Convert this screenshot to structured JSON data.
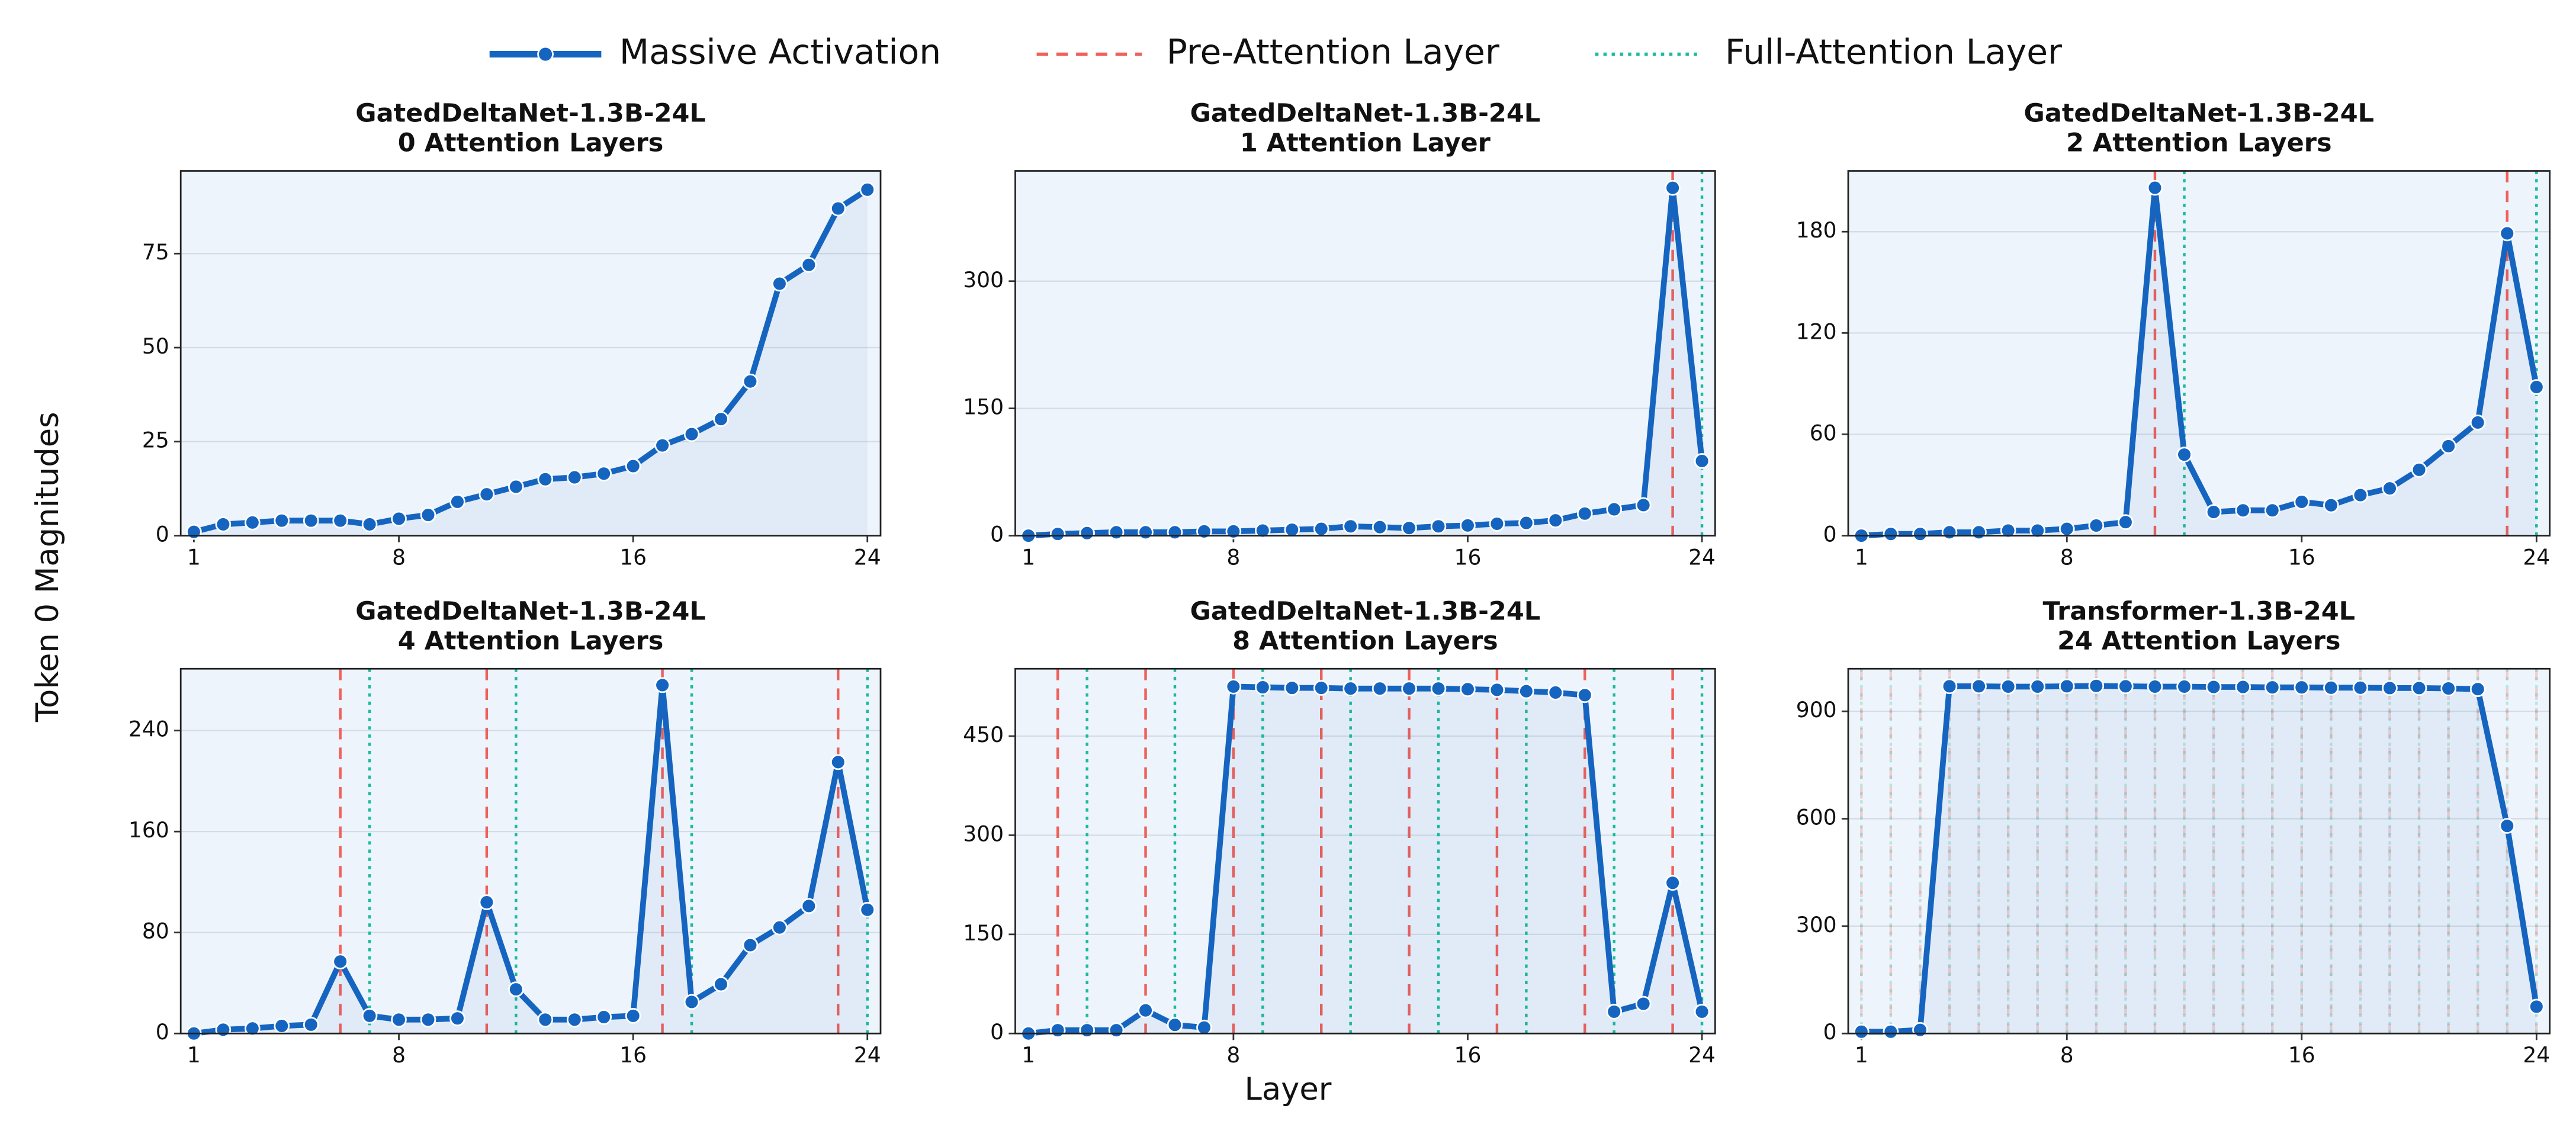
{
  "legend": [
    {
      "name": "Massive Activation",
      "color": "#1565c0",
      "style": "solid"
    },
    {
      "name": "Pre-Attention Layer",
      "color": "#f0605a",
      "style": "dashed"
    },
    {
      "name": "Full-Attention Layer",
      "color": "#1abc9c",
      "style": "dotted"
    }
  ],
  "xlabel": "Layer",
  "ylabel": "Token 0 Magnitudes",
  "chart_data": [
    {
      "type": "line",
      "title": "GatedDeltaNet-1.3B-24L",
      "subtitle": "0 Attention Layers",
      "x": [
        1,
        2,
        3,
        4,
        5,
        6,
        7,
        8,
        9,
        10,
        11,
        12,
        13,
        14,
        15,
        16,
        17,
        18,
        19,
        20,
        21,
        22,
        23,
        24
      ],
      "values": [
        1,
        3,
        3.5,
        4,
        4,
        4,
        3,
        4.5,
        5.5,
        9,
        11,
        13,
        15,
        15.5,
        16.5,
        18.5,
        24,
        27,
        31,
        41,
        67,
        72,
        87,
        92
      ],
      "xlim": [
        0.55,
        24.45
      ],
      "ylim": [
        0,
        97
      ],
      "xticks": [
        1,
        8,
        16,
        24
      ],
      "yticks": [
        0,
        25,
        50,
        75
      ],
      "pre_attention_layers": [],
      "full_attention_layers": []
    },
    {
      "type": "line",
      "title": "GatedDeltaNet-1.3B-24L",
      "subtitle": "1 Attention Layer",
      "x": [
        1,
        2,
        3,
        4,
        5,
        6,
        7,
        8,
        9,
        10,
        11,
        12,
        13,
        14,
        15,
        16,
        17,
        18,
        19,
        20,
        21,
        22,
        23,
        24
      ],
      "values": [
        0,
        2,
        3,
        4,
        4,
        4,
        5,
        5,
        6,
        7,
        8,
        11,
        10,
        9,
        11,
        12,
        14,
        15,
        18,
        26,
        31,
        36,
        410,
        88
      ],
      "xlim": [
        0.55,
        24.45
      ],
      "ylim": [
        0,
        430
      ],
      "xticks": [
        1,
        8,
        16,
        24
      ],
      "yticks": [
        0,
        150,
        300
      ],
      "pre_attention_layers": [
        23
      ],
      "full_attention_layers": [
        24
      ]
    },
    {
      "type": "line",
      "title": "GatedDeltaNet-1.3B-24L",
      "subtitle": "2 Attention Layers",
      "x": [
        1,
        2,
        3,
        4,
        5,
        6,
        7,
        8,
        9,
        10,
        11,
        12,
        13,
        14,
        15,
        16,
        17,
        18,
        19,
        20,
        21,
        22,
        23,
        24
      ],
      "values": [
        0,
        1,
        1,
        2,
        2,
        3,
        3,
        4,
        6,
        8,
        206,
        48,
        14,
        15,
        15,
        20,
        18,
        24,
        28,
        39,
        53,
        67,
        179,
        88
      ],
      "xlim": [
        0.55,
        24.45
      ],
      "ylim": [
        0,
        216
      ],
      "xticks": [
        1,
        8,
        16,
        24
      ],
      "yticks": [
        0,
        60,
        120,
        180
      ],
      "pre_attention_layers": [
        11,
        23
      ],
      "full_attention_layers": [
        12,
        24
      ]
    },
    {
      "type": "line",
      "title": "GatedDeltaNet-1.3B-24L",
      "subtitle": "4 Attention Layers",
      "x": [
        1,
        2,
        3,
        4,
        5,
        6,
        7,
        8,
        9,
        10,
        11,
        12,
        13,
        14,
        15,
        16,
        17,
        18,
        19,
        20,
        21,
        22,
        23,
        24
      ],
      "values": [
        0,
        3,
        4,
        6,
        7,
        57,
        14,
        11,
        11,
        12,
        104,
        35,
        11,
        11,
        13,
        14,
        276,
        25,
        39,
        70,
        84,
        101,
        215,
        98
      ],
      "xlim": [
        0.55,
        24.45
      ],
      "ylim": [
        0,
        289
      ],
      "xticks": [
        1,
        8,
        16,
        24
      ],
      "yticks": [
        0,
        80,
        160,
        240
      ],
      "pre_attention_layers": [
        6,
        11,
        17,
        23
      ],
      "full_attention_layers": [
        7,
        12,
        18,
        24
      ]
    },
    {
      "type": "line",
      "title": "GatedDeltaNet-1.3B-24L",
      "subtitle": "8 Attention Layers",
      "x": [
        1,
        2,
        3,
        4,
        5,
        6,
        7,
        8,
        9,
        10,
        11,
        12,
        13,
        14,
        15,
        16,
        17,
        18,
        19,
        20,
        21,
        22,
        23,
        24
      ],
      "values": [
        0,
        5,
        5,
        5,
        35,
        13,
        9,
        525,
        524,
        523,
        523,
        522,
        522,
        522,
        522,
        521,
        520,
        518,
        516,
        512,
        33,
        45,
        228,
        33
      ],
      "xlim": [
        0.55,
        24.45
      ],
      "ylim": [
        0,
        552
      ],
      "xticks": [
        1,
        8,
        16,
        24
      ],
      "yticks": [
        0,
        150,
        300,
        450
      ],
      "pre_attention_layers": [
        2,
        5,
        8,
        11,
        14,
        17,
        20,
        23
      ],
      "full_attention_layers": [
        3,
        6,
        9,
        12,
        15,
        18,
        21,
        24
      ]
    },
    {
      "type": "line",
      "title": "Transformer-1.3B-24L",
      "subtitle": "24 Attention Layers",
      "x": [
        1,
        2,
        3,
        4,
        5,
        6,
        7,
        8,
        9,
        10,
        11,
        12,
        13,
        14,
        15,
        16,
        17,
        18,
        19,
        20,
        21,
        22,
        23,
        24
      ],
      "values": [
        5,
        5,
        10,
        970,
        970,
        969,
        969,
        970,
        971,
        970,
        969,
        969,
        968,
        968,
        967,
        967,
        966,
        966,
        965,
        965,
        964,
        962,
        580,
        75
      ],
      "xlim": [
        0.55,
        24.45
      ],
      "ylim": [
        0,
        1019
      ],
      "xticks": [
        1,
        8,
        16,
        24
      ],
      "yticks": [
        0,
        300,
        600,
        900
      ],
      "pre_attention_layers": [
        1,
        2,
        3,
        4,
        5,
        6,
        7,
        8,
        9,
        10,
        11,
        12,
        13,
        14,
        15,
        16,
        17,
        18,
        19,
        20,
        21,
        22,
        23,
        24
      ],
      "full_attention_layers": [
        1,
        2,
        3,
        4,
        5,
        6,
        7,
        8,
        9,
        10,
        11,
        12,
        13,
        14,
        15,
        16,
        17,
        18,
        19,
        20,
        21,
        22,
        23,
        24
      ],
      "attention_line_opacity": 0.25
    }
  ]
}
